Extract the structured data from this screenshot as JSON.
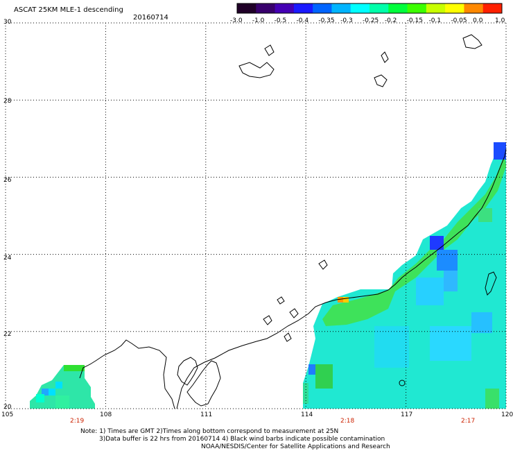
{
  "header": {
    "title": "ASCAT 25KM MLE-1 descending",
    "date": "20160714"
  },
  "colorbar": {
    "labels": [
      "-3.0",
      "-1.0",
      "-0.5",
      "-0.4",
      "-0.35",
      "-0.3",
      "-0.25",
      "-0.2",
      "-0.15",
      "-0.1",
      "-0.05",
      "0.0",
      "1.0"
    ],
    "colors": [
      "#200028",
      "#38006c",
      "#4400b4",
      "#1a1aff",
      "#0064ff",
      "#00b4ff",
      "#00ffff",
      "#00ffaa",
      "#00ff3c",
      "#3cff00",
      "#c8ff00",
      "#ffff00",
      "#ff8800",
      "#ff2000"
    ]
  },
  "axes": {
    "lat_labels": [
      "30",
      "28",
      "26",
      "24",
      "22",
      "20"
    ],
    "lon_labels": [
      "105",
      "108",
      "111",
      "114",
      "117",
      "120"
    ],
    "lat_range": [
      20,
      30
    ],
    "lon_range": [
      105,
      120
    ]
  },
  "pass_times": [
    "2:19",
    "2:18",
    "2:17"
  ],
  "notes": {
    "line1": "Note: 1) Times are GMT 2)Times along bottom correspond to measurement at 25N",
    "line2": "3)Data buffer is 22 hrs from 20160714 4) Black wind barbs indicate possible contamination",
    "line3": "NOAA/NESDIS/Center for Satellite Applications and Research"
  }
}
